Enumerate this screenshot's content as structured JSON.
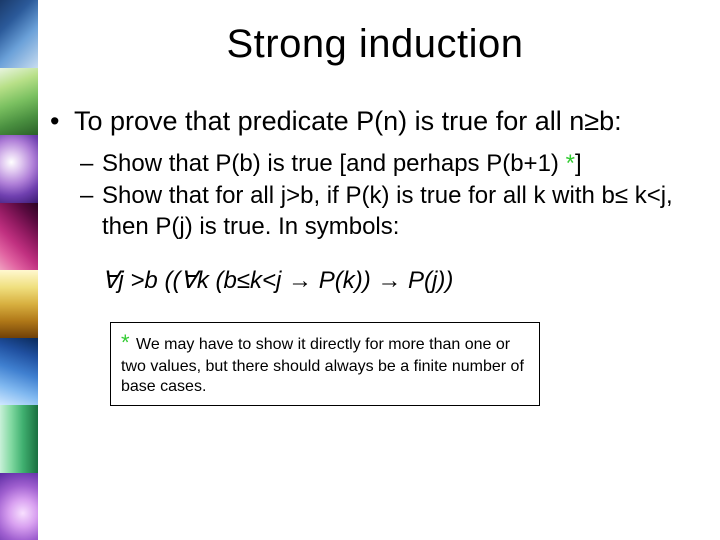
{
  "slide": {
    "title": "Strong induction",
    "title_fontsize": 40,
    "title_color": "#000000",
    "background_color": "#ffffff",
    "body_fontsize": 27,
    "sub_fontsize": 24,
    "formula_fontsize": 24,
    "footnote_fontsize": 16,
    "star_color": "#33cc33",
    "bullet_marker": "•",
    "dash_marker": "–",
    "main_bullet": "To prove that predicate P(n) is true for all n≥b:",
    "sub1_prefix": "Show that P(b) is true [and perhaps P(b+1) ",
    "sub1_star": "*",
    "sub1_suffix": "]",
    "sub2": "Show that for all j>b, if P(k) is true for all k with b≤ k<j, then P(j) is true. In symbols:",
    "formula": "∀j >b ((∀k (b≤k<j → P(k)) → P(j))",
    "footnote_star": "*",
    "footnote_text": " We may have to show it directly for more than one or two values, but there should always be a finite number of base cases."
  },
  "deco": {
    "width": 38,
    "segments": [
      "linear-gradient(135deg,#1a3a6a 0%,#2b5a9a 30%,#6aa0d8 60%,#c8dcf0 100%)",
      "linear-gradient(160deg,#e8f4e0 0%,#b8e088 25%,#7ac060 50%,#4a9040 75%,#2a6028 100%)",
      "radial-gradient(circle at 30% 40%,#ffffff 0%,#e0c8f0 20%,#b080d8 45%,#7040b0 70%,#3a1a72 100%)",
      "linear-gradient(45deg,#f0a0c0 0%,#e060a0 20%,#c03080 40%,#901a60 60%,#5a0a40 80%,#2a0422 100%)",
      "linear-gradient(180deg,#fff8d0 0%,#f0e080 25%,#d8b040 50%,#b07818 75%,#704008 100%)",
      "linear-gradient(200deg,#0a2a5a 0%,#2050a0 25%,#4080d0 50%,#80b8f0 75%,#d0e8ff 100%)",
      "linear-gradient(90deg,#c8f0d8 0%,#80d8a0 30%,#40b070 60%,#1a7040 100%)",
      "radial-gradient(circle at 60% 60%,#f8e0ff 0%,#d8a0f0 30%,#a060d0 60%,#5a2aa2 100%)"
    ]
  }
}
